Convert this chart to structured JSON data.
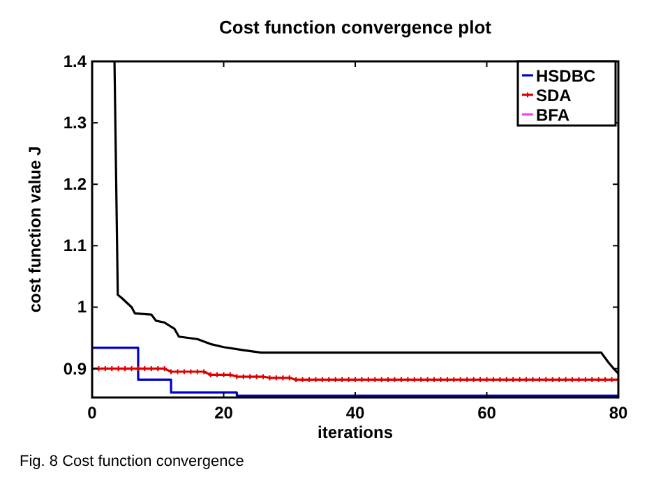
{
  "chart_data": {
    "type": "line",
    "title": "Cost function convergence plot",
    "xlabel": "iterations",
    "ylabel": "cost function value J",
    "annotations": [
      "Fig. 8  Cost function convergence"
    ],
    "xlim": [
      0,
      80
    ],
    "xticks": [
      0,
      20,
      40,
      60,
      80
    ],
    "ylim": [
      0.853,
      1.4
    ],
    "yticks": [
      0.9,
      1,
      1.1,
      1.2,
      1.3,
      1.4
    ],
    "grid": false,
    "legend": "top right",
    "series": [
      {
        "name": "HSDBC",
        "color": "#0000cc",
        "x": [
          0,
          7,
          7,
          12,
          12,
          22,
          22,
          80
        ],
        "values": [
          0.934,
          0.934,
          0.882,
          0.882,
          0.861,
          0.861,
          0.856,
          0.856
        ]
      },
      {
        "name": "SDA",
        "color": "#dd0000",
        "marker": "cross",
        "x": [
          0,
          1,
          2,
          3,
          4,
          5,
          6,
          7,
          8,
          9,
          10,
          11,
          12,
          13,
          14,
          15,
          16,
          17,
          18,
          19,
          20,
          21,
          22,
          23,
          24,
          25,
          26,
          27,
          28,
          29,
          30,
          31,
          32,
          33,
          34,
          35,
          36,
          37,
          38,
          39,
          40,
          41,
          42,
          43,
          44,
          45,
          46,
          47,
          48,
          49,
          50,
          51,
          52,
          53,
          54,
          55,
          56,
          57,
          58,
          59,
          60,
          61,
          62,
          63,
          64,
          65,
          66,
          67,
          68,
          69,
          70,
          71,
          72,
          73,
          74,
          75,
          76,
          77,
          78,
          79,
          80
        ],
        "values": [
          0.9,
          0.9,
          0.9,
          0.9,
          0.9,
          0.9,
          0.9,
          0.9,
          0.9,
          0.9,
          0.9,
          0.9,
          0.895,
          0.895,
          0.895,
          0.895,
          0.895,
          0.895,
          0.89,
          0.89,
          0.89,
          0.89,
          0.887,
          0.887,
          0.887,
          0.887,
          0.887,
          0.885,
          0.885,
          0.885,
          0.885,
          0.882,
          0.882,
          0.882,
          0.882,
          0.882,
          0.882,
          0.882,
          0.882,
          0.882,
          0.882,
          0.882,
          0.882,
          0.882,
          0.882,
          0.882,
          0.882,
          0.882,
          0.882,
          0.882,
          0.882,
          0.882,
          0.882,
          0.882,
          0.882,
          0.882,
          0.882,
          0.882,
          0.882,
          0.882,
          0.882,
          0.882,
          0.882,
          0.882,
          0.882,
          0.882,
          0.882,
          0.882,
          0.882,
          0.882,
          0.882,
          0.882,
          0.882,
          0.882,
          0.882,
          0.882,
          0.882,
          0.882,
          0.882,
          0.882,
          0.882
        ]
      },
      {
        "name": "BFA",
        "color": "#ee44ee"
      },
      {
        "color": "#000000",
        "x": [
          3.4,
          3.9,
          4.5,
          6,
          6.5,
          9,
          9.7,
          11,
          12.5,
          13.2,
          16,
          18,
          20,
          23,
          25.7,
          30,
          40,
          50,
          60,
          77.4,
          78.5,
          79.3,
          80
        ],
        "values": [
          1.4,
          1.02,
          1.015,
          1.0,
          0.99,
          0.988,
          0.978,
          0.975,
          0.965,
          0.952,
          0.948,
          0.94,
          0.935,
          0.93,
          0.926,
          0.926,
          0.926,
          0.926,
          0.926,
          0.926,
          0.91,
          0.9,
          0.892
        ]
      }
    ]
  }
}
